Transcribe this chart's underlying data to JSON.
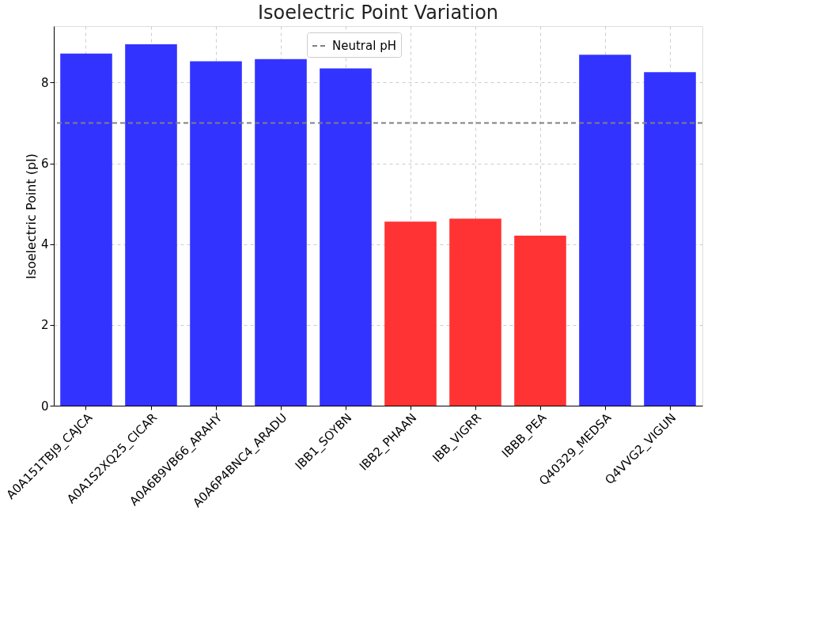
{
  "chart_data": {
    "type": "bar",
    "title": "Isoelectric Point Variation",
    "ylabel": "Isoelectric Point (pI)",
    "categories": [
      "A0A151TBJ9_CAJCA",
      "A0A1S2XQ25_CICAR",
      "A0A6B9VB66_ARAHY",
      "A0A6P4BNC4_ARADU",
      "IBB1_SOYBN",
      "IBB2_PHAAN",
      "IBB_VIGRR",
      "IBBB_PEA",
      "Q40329_MEDSA",
      "Q4VVG2_VIGUN"
    ],
    "values": [
      8.72,
      8.95,
      8.53,
      8.58,
      8.35,
      4.56,
      4.63,
      4.21,
      8.69,
      8.26
    ],
    "colors": [
      "#3333ff",
      "#3333ff",
      "#3333ff",
      "#3333ff",
      "#3333ff",
      "#ff3333",
      "#ff3333",
      "#ff3333",
      "#3333ff",
      "#3333ff"
    ],
    "ylim": [
      0,
      9.4
    ],
    "yticks": [
      0,
      2,
      4,
      6,
      8
    ],
    "ref_lines": [
      {
        "axis": "y",
        "value": 7,
        "label": "Neutral pH",
        "color": "#808080",
        "line_style": "dashed"
      }
    ],
    "grid": true,
    "legend": "top"
  }
}
